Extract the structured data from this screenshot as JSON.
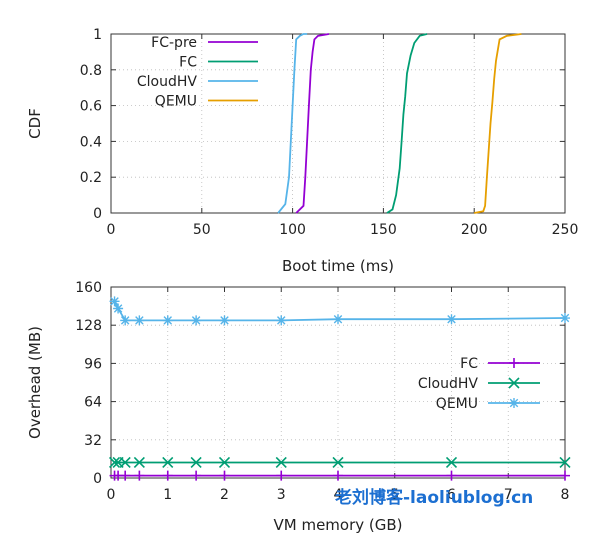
{
  "colors": {
    "FC": "#9400d3",
    "FC-pre": "#9400d3",
    "CloudHV": "#56b4e9",
    "QEMU": "#e69f00",
    "FC_mem": "#9400d3",
    "CloudHV_mem": "#009e73",
    "QEMU_mem": "#56b4e9",
    "FC_boot": "#009e73"
  },
  "watermark": "老刘博客-laoliublog.cn",
  "chart_data": [
    {
      "type": "line",
      "xlabel": "Boot time (ms)",
      "ylabel": "CDF",
      "xlim": [
        0,
        250
      ],
      "ylim": [
        0,
        1
      ],
      "xticks": [
        "0",
        "50",
        "100",
        "150",
        "200",
        "250"
      ],
      "yticks": [
        "0",
        "0.2",
        "0.4",
        "0.6",
        "0.8",
        "1"
      ],
      "grid": true,
      "legend": "top-left",
      "series": [
        {
          "name": "FC-pre",
          "color": "#9400d3",
          "x": [
            102,
            106,
            107,
            108,
            109,
            110,
            111,
            112,
            114,
            120
          ],
          "y": [
            0,
            0.04,
            0.2,
            0.4,
            0.6,
            0.8,
            0.9,
            0.97,
            0.99,
            1
          ]
        },
        {
          "name": "FC",
          "color": "#009e73",
          "x": [
            152,
            155,
            157,
            159,
            160,
            161,
            162,
            163,
            165,
            167,
            170,
            174
          ],
          "y": [
            0,
            0.02,
            0.1,
            0.25,
            0.4,
            0.55,
            0.65,
            0.78,
            0.88,
            0.95,
            0.99,
            1
          ]
        },
        {
          "name": "CloudHV",
          "color": "#56b4e9",
          "x": [
            92,
            96,
            98,
            99,
            100,
            101,
            102,
            104,
            106,
            108
          ],
          "y": [
            0,
            0.05,
            0.2,
            0.4,
            0.6,
            0.8,
            0.97,
            0.99,
            1,
            1
          ]
        },
        {
          "name": "QEMU",
          "color": "#e69f00",
          "x": [
            200,
            205,
            206,
            207,
            208,
            209,
            210,
            211,
            212,
            214,
            218,
            226
          ],
          "y": [
            0,
            0.01,
            0.04,
            0.2,
            0.35,
            0.5,
            0.62,
            0.75,
            0.85,
            0.97,
            0.99,
            1
          ]
        }
      ]
    },
    {
      "type": "line",
      "xlabel": "VM memory (GB)",
      "ylabel": "Overhead (MB)",
      "xlim": [
        0,
        8
      ],
      "ylim": [
        0,
        160
      ],
      "xticks": [
        "0",
        "1",
        "2",
        "3",
        "4",
        "5",
        "6",
        "7",
        "8"
      ],
      "yticks": [
        "0",
        "32",
        "64",
        "96",
        "128",
        "160"
      ],
      "grid": true,
      "legend": "right",
      "series": [
        {
          "name": "FC",
          "color": "#9400d3",
          "marker": "+",
          "x": [
            0.0625,
            0.125,
            0.25,
            0.5,
            1,
            1.5,
            2,
            3,
            4,
            6,
            8
          ],
          "y": [
            2,
            2,
            2,
            2,
            2,
            2,
            2,
            2,
            2,
            2,
            2
          ]
        },
        {
          "name": "CloudHV",
          "color": "#009e73",
          "marker": "x",
          "x": [
            0.0625,
            0.125,
            0.25,
            0.5,
            1,
            1.5,
            2,
            3,
            4,
            6,
            8
          ],
          "y": [
            13,
            13,
            13,
            13,
            13,
            13,
            13,
            13,
            13,
            13,
            13
          ]
        },
        {
          "name": "QEMU",
          "color": "#56b4e9",
          "marker": "*",
          "x": [
            0.0625,
            0.125,
            0.25,
            0.5,
            1,
            1.5,
            2,
            3,
            4,
            6,
            8
          ],
          "y": [
            148,
            142,
            132,
            132,
            132,
            132,
            132,
            132,
            133,
            133,
            134
          ]
        }
      ]
    }
  ]
}
